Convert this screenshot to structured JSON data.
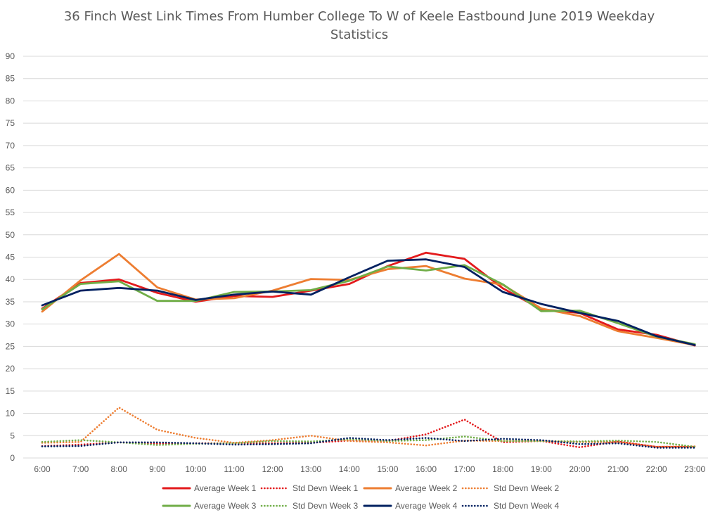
{
  "chart_data": {
    "type": "line",
    "title_line1": "36 Finch West Link Times From Humber College To W of Keele Eastbound June 2019 Weekday",
    "title_line2": "Statistics",
    "categories": [
      "6:00",
      "7:00",
      "8:00",
      "9:00",
      "10:00",
      "11:00",
      "12:00",
      "13:00",
      "14:00",
      "15:00",
      "16:00",
      "17:00",
      "18:00",
      "19:00",
      "20:00",
      "21:00",
      "22:00",
      "23:00"
    ],
    "ylim": [
      0,
      90
    ],
    "yticks": [
      "0",
      "5",
      "10",
      "15",
      "20",
      "25",
      "30",
      "35",
      "40",
      "45",
      "50",
      "55",
      "60",
      "65",
      "70",
      "75",
      "80",
      "85",
      "90"
    ],
    "grid": true,
    "legend_position": "bottom",
    "series": [
      {
        "name": "Average Week 1",
        "color": "#e31a1c",
        "style": "solid",
        "values": [
          33.5,
          39.2,
          40.0,
          37.0,
          35.0,
          36.3,
          36.1,
          37.5,
          39.0,
          43.0,
          46.0,
          44.6,
          38.0,
          33.3,
          32.5,
          28.8,
          27.6,
          25.2
        ]
      },
      {
        "name": "Std Devn Week 1",
        "color": "#e31a1c",
        "style": "dotted",
        "values": [
          2.7,
          3.0,
          3.5,
          3.2,
          3.3,
          3.3,
          3.3,
          3.4,
          3.9,
          3.8,
          5.3,
          8.6,
          3.5,
          3.8,
          2.4,
          3.7,
          2.5,
          2.5
        ]
      },
      {
        "name": "Average Week 2",
        "color": "#ed7d31",
        "style": "solid",
        "values": [
          32.8,
          39.8,
          45.7,
          38.2,
          35.5,
          35.8,
          37.5,
          40.1,
          39.9,
          42.3,
          43.0,
          40.2,
          38.8,
          33.5,
          31.8,
          28.4,
          26.9,
          25.3
        ]
      },
      {
        "name": "Std Devn Week 2",
        "color": "#ed7d31",
        "style": "dotted",
        "values": [
          3.4,
          3.6,
          11.3,
          6.3,
          4.5,
          3.4,
          4.0,
          5.0,
          3.8,
          3.5,
          2.8,
          3.9,
          3.8,
          3.8,
          3.6,
          3.6,
          2.5,
          2.6
        ]
      },
      {
        "name": "Average Week 3",
        "color": "#70ad47",
        "style": "solid",
        "values": [
          33.3,
          39.0,
          39.6,
          35.2,
          35.2,
          37.2,
          37.3,
          37.6,
          39.7,
          42.9,
          42.0,
          43.2,
          38.9,
          32.9,
          33.0,
          30.2,
          27.2,
          25.5
        ]
      },
      {
        "name": "Std Devn Week 3",
        "color": "#70ad47",
        "style": "dotted",
        "values": [
          3.6,
          4.0,
          3.5,
          2.9,
          3.2,
          3.3,
          3.8,
          3.7,
          4.2,
          3.8,
          4.0,
          4.8,
          3.8,
          3.8,
          3.7,
          3.9,
          3.6,
          2.5
        ]
      },
      {
        "name": "Average Week 4",
        "color": "#002060",
        "style": "solid",
        "values": [
          34.2,
          37.5,
          38.1,
          37.5,
          35.4,
          36.6,
          37.3,
          36.6,
          40.5,
          44.2,
          44.5,
          42.8,
          37.2,
          34.5,
          32.5,
          30.7,
          27.3,
          25.3
        ]
      },
      {
        "name": "Std Devn Week 4",
        "color": "#002060",
        "style": "dotted",
        "values": [
          2.6,
          2.7,
          3.5,
          3.5,
          3.3,
          3.0,
          3.1,
          3.3,
          4.5,
          4.0,
          4.5,
          3.8,
          4.3,
          4.0,
          3.1,
          3.3,
          2.3,
          2.3
        ]
      }
    ]
  }
}
